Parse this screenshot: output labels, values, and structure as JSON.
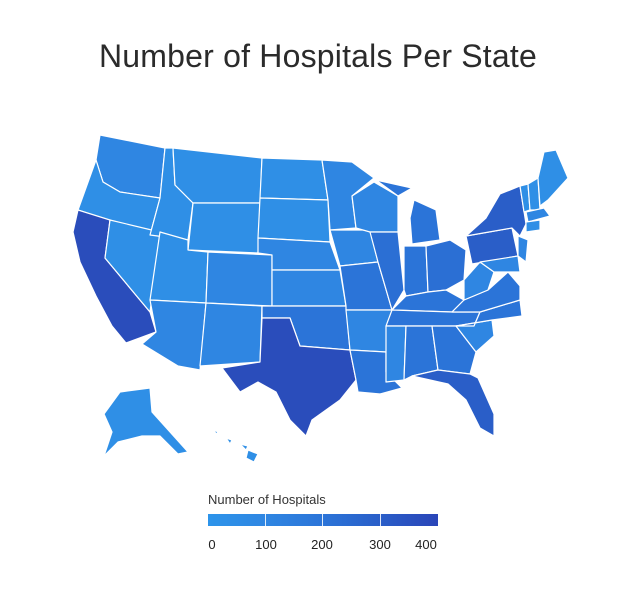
{
  "title": "Number of Hospitals Per State",
  "legend": {
    "title": "Number of Hospitals",
    "ticks": [
      "0",
      "100",
      "200",
      "300",
      "400"
    ],
    "colors": [
      "#2d94ea",
      "#2f86e2",
      "#2b74d8",
      "#2a5ec8",
      "#2a45b8"
    ]
  },
  "palette": {
    "low": "#2f8fe6",
    "mid": "#2f7fdf",
    "midhigh": "#2b6fd4",
    "high": "#2a4dbb",
    "border": "#ffffff"
  },
  "highlighted_states": [
    "California",
    "Texas"
  ]
}
